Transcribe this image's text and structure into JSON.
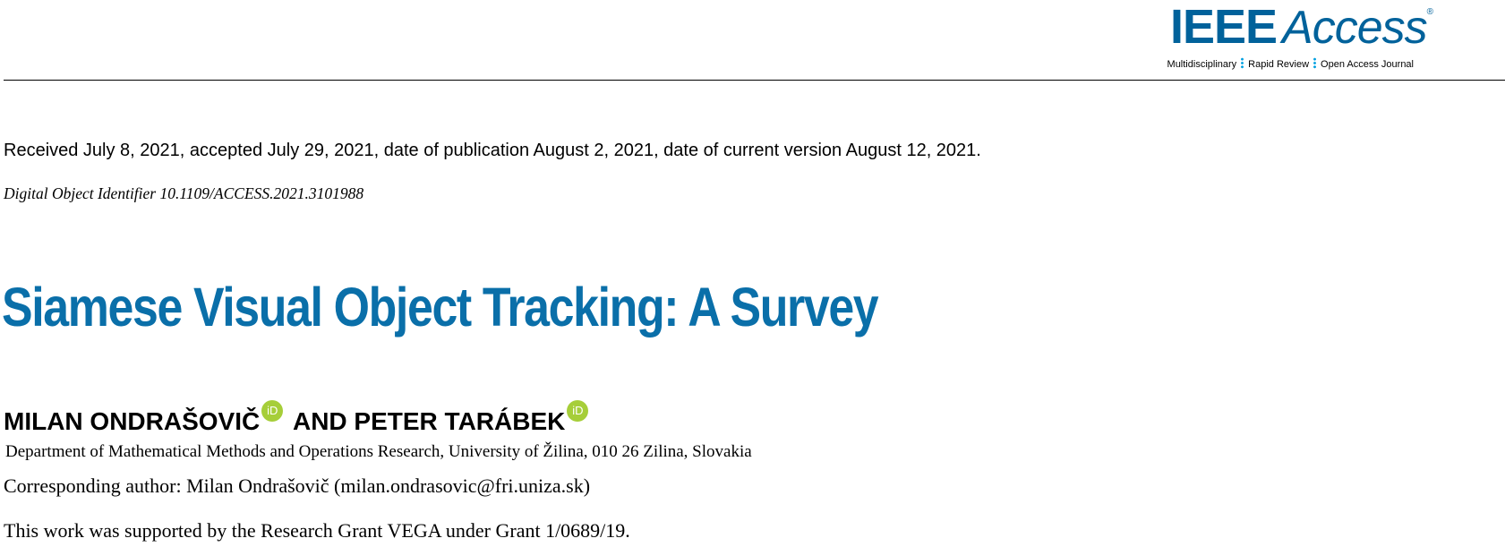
{
  "journal": {
    "name_bold": "IEEE",
    "name_italic": "Access",
    "registered_mark": "®",
    "tagline_items": [
      "Multidisciplinary",
      "Rapid Review",
      "Open Access Journal"
    ]
  },
  "history": "Received July 8, 2021, accepted July 29, 2021, date of publication August 2, 2021, date of current version August 12, 2021.",
  "doi": "Digital Object Identifier 10.1109/ACCESS.2021.3101988",
  "title": "Siamese Visual Object Tracking: A Survey",
  "authors": {
    "first": "MILAN ONDRAŠOVIČ",
    "connector": " AND PETER TARÁBEK",
    "orcid_label": "iD"
  },
  "affiliation": "Department of Mathematical Methods and Operations Research, University of Žilina, 010 26 Zilina, Slovakia",
  "corresponding": "Corresponding author: Milan Ondrašovič (milan.ondrasovic@fri.uniza.sk)",
  "funding": "This work was supported by the Research Grant VEGA under Grant 1/0689/19.",
  "colors": {
    "brand_blue": "#00629b",
    "title_blue": "#0a6fa9",
    "orcid_green": "#a6ce39"
  }
}
